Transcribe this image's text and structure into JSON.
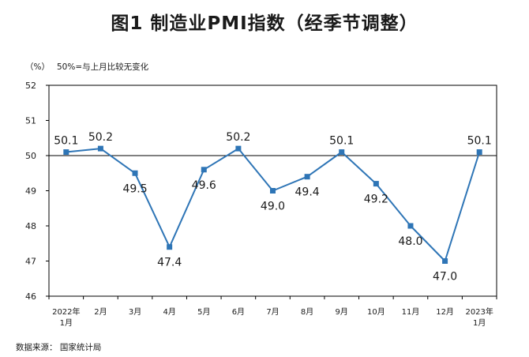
{
  "title": "图1 制造业PMI指数（经季节调整）",
  "unit_label": "（%）",
  "reference_note": "50%=与上月比较无变化",
  "source_label": "数据来源： 国家统计局",
  "colors": {
    "series": "#2E75B6",
    "axis": "#000000"
  },
  "chart_data": {
    "type": "line",
    "title": "图1 制造业PMI指数（经季节调整）",
    "xlabel": "",
    "ylabel": "（%）",
    "ylim": [
      46,
      52
    ],
    "yticks": [
      46,
      47,
      48,
      49,
      50,
      51,
      52
    ],
    "reference_line": 50,
    "grid": false,
    "categories": [
      [
        "2022年",
        "1月"
      ],
      [
        "2月"
      ],
      [
        "3月"
      ],
      [
        "4月"
      ],
      [
        "5月"
      ],
      [
        "6月"
      ],
      [
        "7月"
      ],
      [
        "8月"
      ],
      [
        "9月"
      ],
      [
        "10月"
      ],
      [
        "11月"
      ],
      [
        "12月"
      ],
      [
        "2023年",
        "1月"
      ]
    ],
    "series": [
      {
        "values": [
          50.1,
          50.2,
          49.5,
          47.4,
          49.6,
          50.2,
          49.0,
          49.4,
          50.1,
          49.2,
          48.0,
          47.0,
          50.1
        ],
        "data_labels": [
          "50.1",
          "50.2",
          "49.5",
          "47.4",
          "49.6",
          "50.2",
          "49.0",
          "49.4",
          "50.1",
          "49.2",
          "48.0",
          "47.0",
          "50.1"
        ],
        "label_side": [
          "above",
          "above",
          "below",
          "below",
          "below",
          "above",
          "below",
          "below",
          "above",
          "below",
          "below",
          "below",
          "above"
        ]
      }
    ]
  }
}
